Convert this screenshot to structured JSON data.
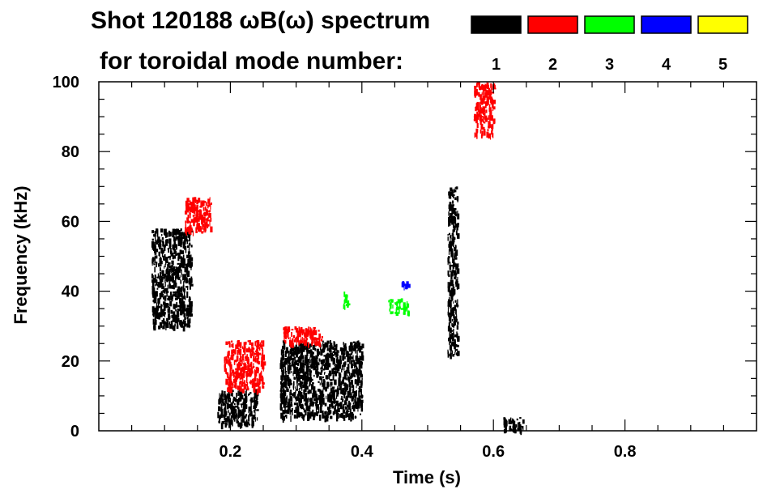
{
  "chart_data": {
    "type": "heatmap",
    "title_line1": "Shot 120188 ωB(ω) spectrum",
    "title_line2": "for toroidal mode number:",
    "xlabel": "Time (s)",
    "ylabel": "Frequency (kHz)",
    "xlim": [
      0.0,
      1.0
    ],
    "ylim": [
      0,
      100
    ],
    "x_ticks": [
      0.2,
      0.4,
      0.6,
      0.8
    ],
    "x_tick_labels": [
      "0.2",
      "0.4",
      "0.6",
      "0.8"
    ],
    "y_ticks": [
      0,
      20,
      40,
      60,
      80,
      100
    ],
    "y_tick_labels": [
      "0",
      "20",
      "40",
      "60",
      "80",
      "100"
    ],
    "legend_position": "top-right",
    "legend": [
      {
        "label": "1",
        "color": "#000000"
      },
      {
        "label": "2",
        "color": "#ff0000"
      },
      {
        "label": "3",
        "color": "#00ff00"
      },
      {
        "label": "4",
        "color": "#0000ff"
      },
      {
        "label": "5",
        "color": "#ffff00"
      }
    ],
    "series": [
      {
        "mode": 1,
        "regions": [
          {
            "t": [
              0.08,
              0.14
            ],
            "f": [
              30,
              58
            ]
          },
          {
            "t": [
              0.18,
              0.24
            ],
            "f": [
              2,
              12
            ]
          },
          {
            "t": [
              0.275,
              0.4
            ],
            "f": [
              4,
              26
            ]
          },
          {
            "t": [
              0.53,
              0.545
            ],
            "f": [
              22,
              70
            ]
          },
          {
            "t": [
              0.615,
              0.645
            ],
            "f": [
              0,
              4
            ]
          }
        ]
      },
      {
        "mode": 2,
        "regions": [
          {
            "t": [
              0.13,
              0.17
            ],
            "f": [
              57,
              67
            ]
          },
          {
            "t": [
              0.19,
              0.25
            ],
            "f": [
              12,
              26
            ]
          },
          {
            "t": [
              0.28,
              0.34
            ],
            "f": [
              25,
              30
            ]
          },
          {
            "t": [
              0.57,
              0.6
            ],
            "f": [
              85,
              100
            ]
          }
        ]
      },
      {
        "mode": 3,
        "regions": [
          {
            "t": [
              0.44,
              0.47
            ],
            "f": [
              34,
              38
            ]
          },
          {
            "t": [
              0.37,
              0.38
            ],
            "f": [
              36,
              40
            ]
          }
        ]
      },
      {
        "mode": 4,
        "regions": [
          {
            "t": [
              0.46,
              0.47
            ],
            "f": [
              42,
              43
            ]
          }
        ]
      }
    ]
  }
}
